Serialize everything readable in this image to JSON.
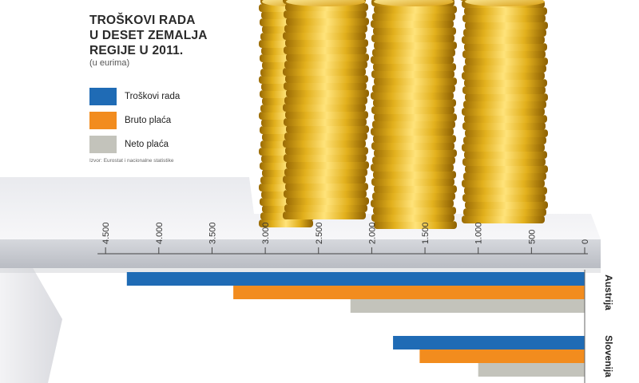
{
  "title_lines": [
    "TROŠKOVI RADA",
    "U DESET ZEMALJA",
    "REGIJE U 2011."
  ],
  "subtitle": "(u eurima)",
  "legend": [
    {
      "label": "Troškovi rada",
      "color": "#1f6bb5"
    },
    {
      "label": "Bruto plaća",
      "color": "#f28c1e"
    },
    {
      "label": "Neto plaća",
      "color": "#c3c3bb"
    }
  ],
  "source": "Izvor: Eurostat i nacionalne statistike",
  "chart_data": {
    "type": "bar",
    "orientation": "horizontal",
    "title": "TROŠKOVI RADA U DESET ZEMALJA REGIJE U 2011.",
    "unit": "(u eurima)",
    "axis_direction": "reversed",
    "xlim": [
      0,
      4500
    ],
    "ticks": [
      0,
      500,
      1000,
      1500,
      2000,
      2500,
      3000,
      3500,
      4000,
      4500
    ],
    "tick_labels": [
      "0",
      "500",
      "1.000",
      "1.500",
      "2.000",
      "2.500",
      "3.000",
      "3.500",
      "4.000",
      "4.500"
    ],
    "categories": [
      "Austrija",
      "Slovenija"
    ],
    "series": [
      {
        "name": "Troškovi rada",
        "color": "#1f6bb5",
        "values": [
          4300,
          1800
        ]
      },
      {
        "name": "Bruto plaća",
        "color": "#f28c1e",
        "values": [
          3300,
          1550
        ]
      },
      {
        "name": "Neto plaća",
        "color": "#c3c3bb",
        "values": [
          2200,
          1000
        ]
      }
    ]
  }
}
